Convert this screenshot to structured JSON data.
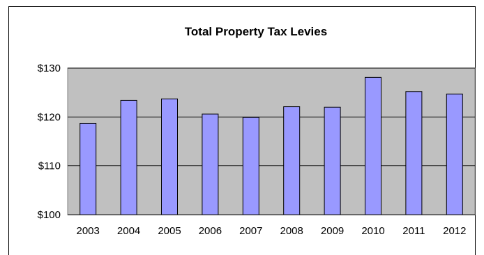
{
  "chart_data": {
    "type": "bar",
    "title": "Total Property Tax Levies",
    "xlabel": "",
    "ylabel": "",
    "categories": [
      "2003",
      "2004",
      "2005",
      "2006",
      "2007",
      "2008",
      "2009",
      "2010",
      "2011",
      "2012"
    ],
    "values": [
      118.7,
      123.4,
      123.7,
      120.6,
      119.9,
      122.1,
      122.0,
      128.1,
      125.2,
      124.7
    ],
    "ylim": [
      100,
      130
    ],
    "yticks": [
      100,
      110,
      120,
      130
    ],
    "ytick_labels": [
      "$100",
      "$110",
      "$120",
      "$130"
    ],
    "grid": true,
    "legend": "none",
    "colors": {
      "bar_fill": "#9999ff",
      "bar_stroke": "#000000",
      "plot_background": "#c0c0c0",
      "gridline": "#000000"
    }
  }
}
